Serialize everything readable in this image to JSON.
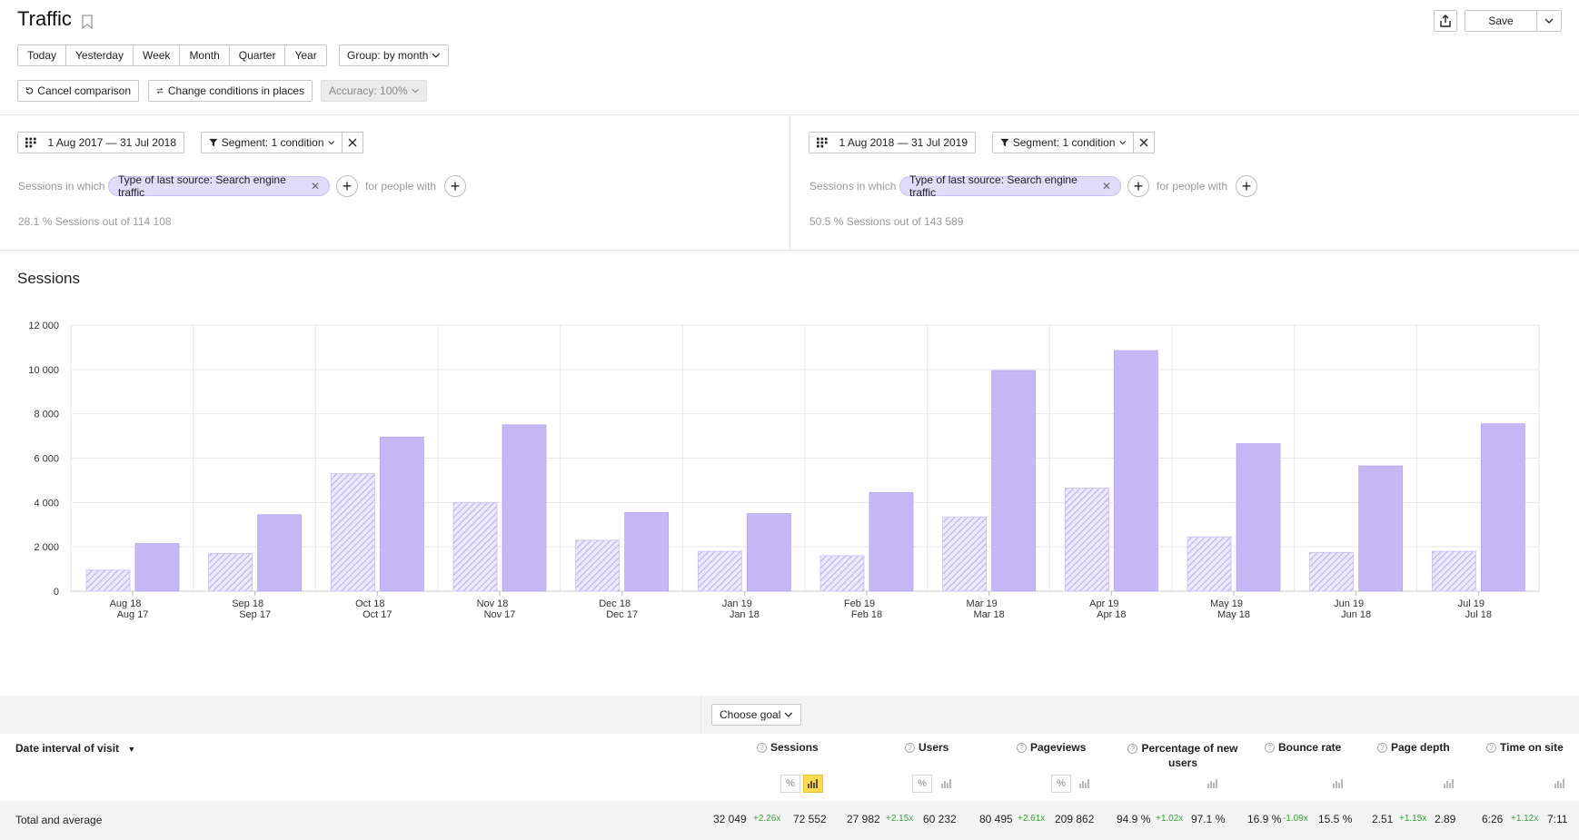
{
  "header": {
    "title": "Traffic",
    "save_label": "Save"
  },
  "periods": [
    "Today",
    "Yesterday",
    "Week",
    "Month",
    "Quarter",
    "Year"
  ],
  "group_label": "Group: by month",
  "toolbar": {
    "cancel_comparison": "Cancel comparison",
    "change_conditions": "Change conditions in places",
    "accuracy": "Accuracy: 100%"
  },
  "left_segment": {
    "date_range": "1 Aug 2017 — 31 Jul 2018",
    "segment_label": "Segment: 1 condition",
    "sessions_in_which": "Sessions in which",
    "condition": "Type of last source: Search engine traffic",
    "for_people_with": "for people with",
    "summary": "28.1 % Sessions out of 114 108"
  },
  "right_segment": {
    "date_range": "1 Aug 2018 — 31 Jul 2019",
    "segment_label": "Segment: 1 condition",
    "sessions_in_which": "Sessions in which",
    "condition": "Type of last source: Search engine traffic",
    "for_people_with": "for people with",
    "summary": "50.5 % Sessions out of 143 589"
  },
  "chart_title": "Sessions",
  "chart_data": {
    "type": "bar",
    "categories": [
      "Aug 18",
      "Sep 18",
      "Oct 18",
      "Nov 18",
      "Dec 18",
      "Jan 19",
      "Feb 19",
      "Mar 19",
      "Apr 19",
      "May 19",
      "Jun 19",
      "Jul 19"
    ],
    "categories_secondary": [
      "Aug 17",
      "Sep 17",
      "Oct 17",
      "Nov 17",
      "Dec 17",
      "Jan 18",
      "Feb 18",
      "Mar 18",
      "Apr 18",
      "May 18",
      "Jun 18",
      "Jul 18"
    ],
    "series": [
      {
        "values": [
          950,
          1700,
          5300,
          4000,
          2300,
          1800,
          1600,
          3350,
          4650,
          2450,
          1750,
          1800
        ],
        "color": "#c5b8f5",
        "pattern": "hatched"
      },
      {
        "values": [
          2150,
          3450,
          6950,
          7500,
          3550,
          3500,
          4450,
          9950,
          10850,
          6650,
          5650,
          7550
        ],
        "color": "#c5b8f5",
        "pattern": "solid"
      }
    ],
    "yticks": [
      0,
      2000,
      4000,
      6000,
      8000,
      10000,
      12000
    ],
    "ytick_labels": [
      "0",
      "2 000",
      "4 000",
      "6 000",
      "8 000",
      "10 000",
      "12 000"
    ],
    "ylim": [
      0,
      12000
    ],
    "grid": true
  },
  "table": {
    "choose_goal": "Choose goal",
    "dimension_header": "Date interval of visit",
    "columns": [
      "Sessions",
      "Users",
      "Pageviews",
      "Percentage of new users",
      "Bounce rate",
      "Page depth",
      "Time on site"
    ],
    "total_label": "Total and average",
    "totals": [
      {
        "a": "32 049",
        "d": "+2.26x",
        "b": "72 552"
      },
      {
        "a": "27 982",
        "d": "+2.15x",
        "b": "60 232"
      },
      {
        "a": "80 495",
        "d": "+2.61x",
        "b": "209 862"
      },
      {
        "a": "94.9 %",
        "d": "+1.02x",
        "b": "97.1 %"
      },
      {
        "a": "16.9 %",
        "d": "-1.09x",
        "b": "15.5 %"
      },
      {
        "a": "2.51",
        "d": "+1.15x",
        "b": "2.89"
      },
      {
        "a": "6:26",
        "d": "+1.12x",
        "b": "7:11"
      }
    ]
  }
}
